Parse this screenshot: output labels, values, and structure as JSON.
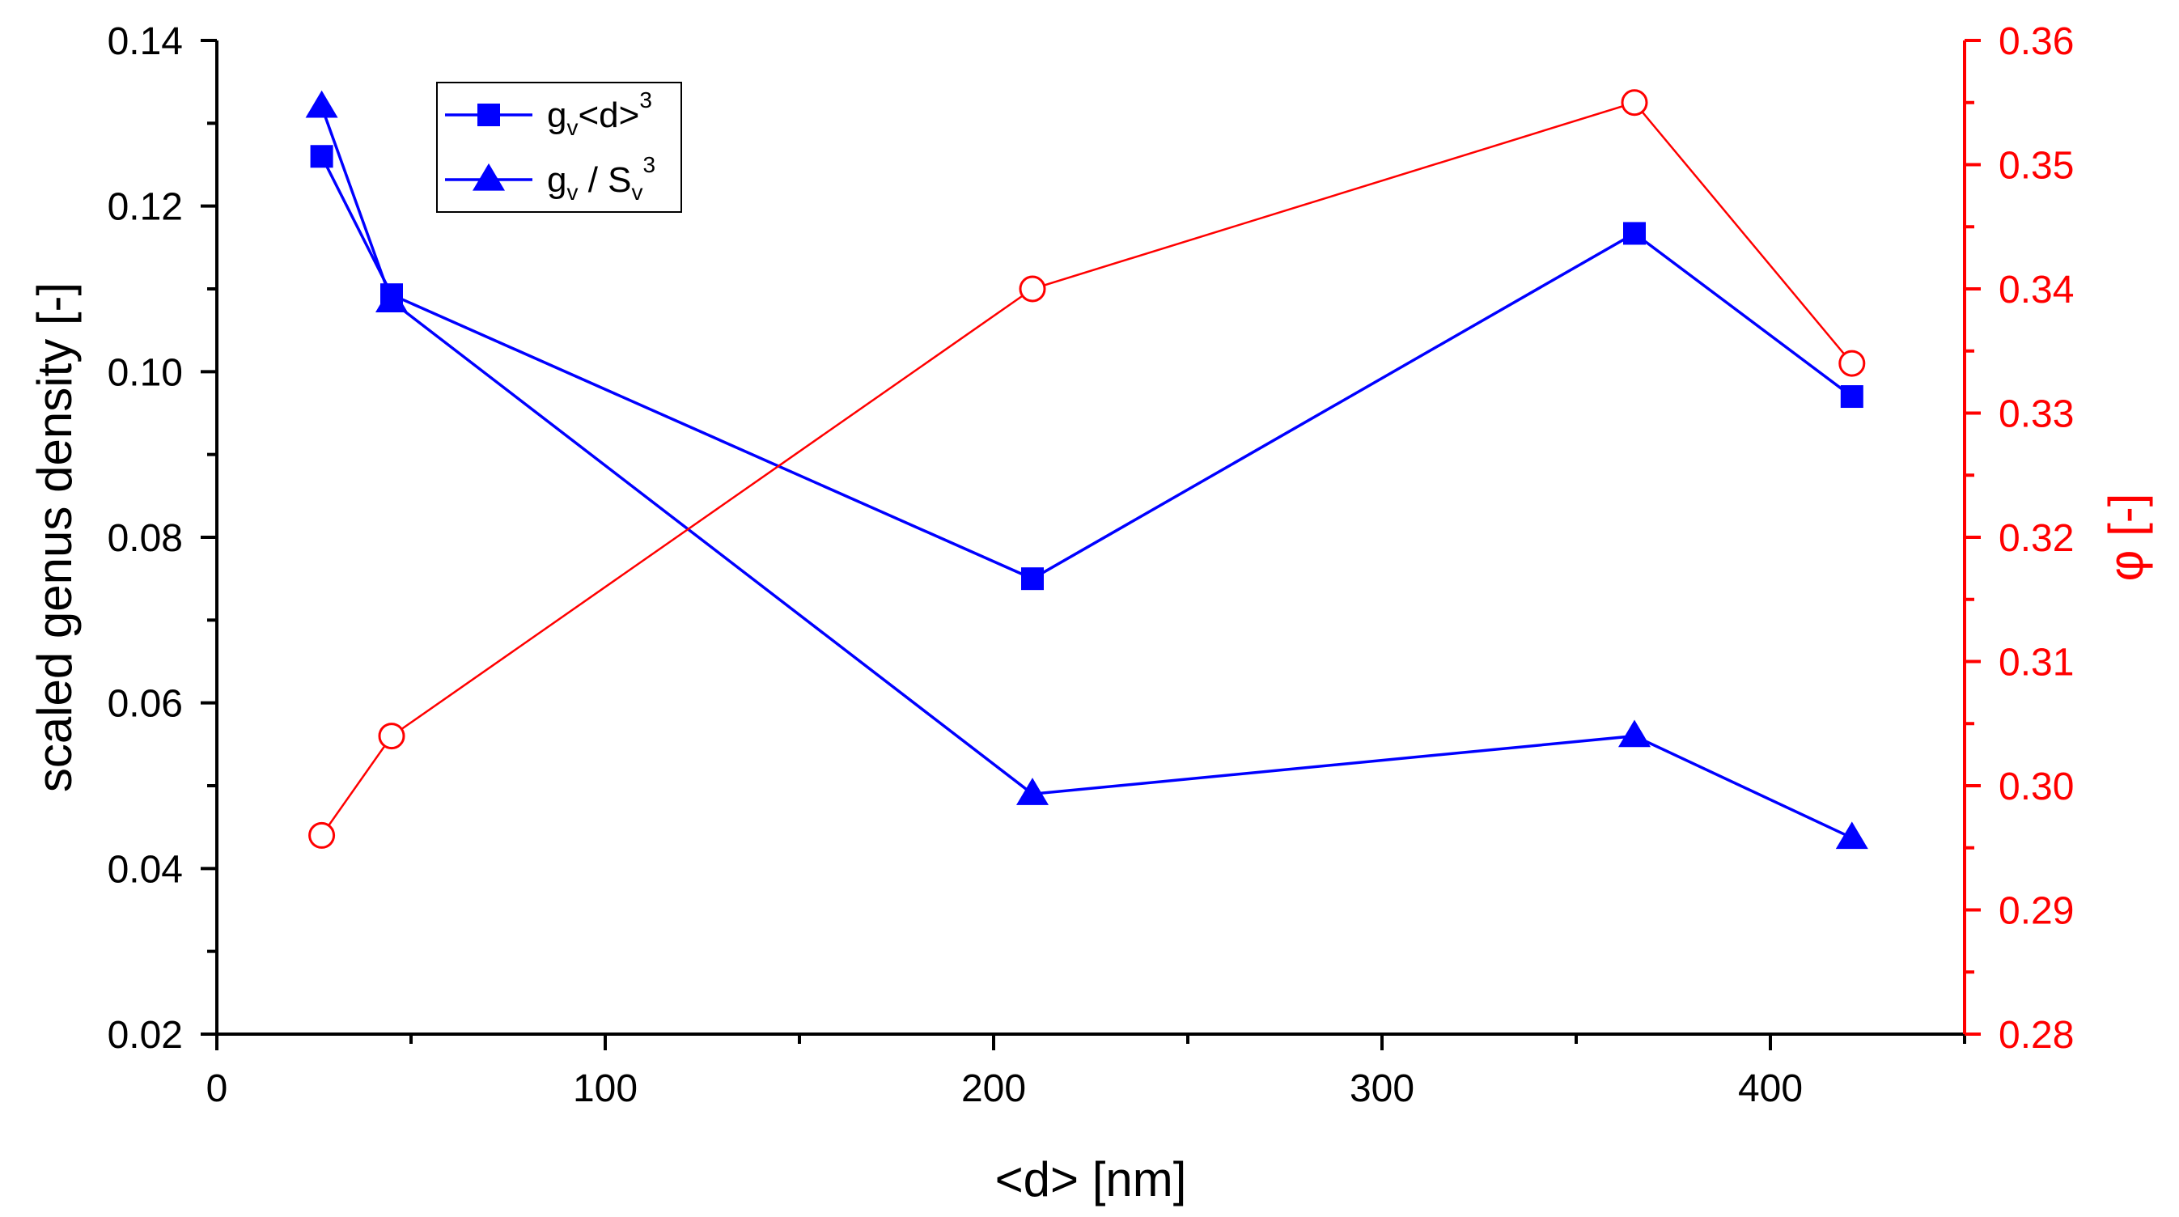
{
  "chart_data": {
    "type": "line",
    "title": "",
    "xlabel": "<d> [nm]",
    "ylabel_left": "scaled genus density [-]",
    "ylabel_right": "φ [-]",
    "xlim": [
      0,
      450
    ],
    "ylim_left": [
      0.02,
      0.14
    ],
    "ylim_right": [
      0.28,
      0.36
    ],
    "x_ticks": [
      "0",
      "100",
      "200",
      "300",
      "400"
    ],
    "y_left_ticks": [
      "0.02",
      "0.04",
      "0.06",
      "0.08",
      "0.10",
      "0.12",
      "0.14"
    ],
    "y_right_ticks": [
      "0.28",
      "0.29",
      "0.30",
      "0.31",
      "0.32",
      "0.33",
      "0.34",
      "0.35",
      "0.36"
    ],
    "grid": false,
    "legend_position": "top-left",
    "colors": {
      "left_axis": "#000000",
      "series_blue": "#0000ff",
      "right_axis": "#ff0000"
    },
    "series": [
      {
        "name": "g_v<d>^3",
        "legend_main": "g",
        "legend_sub": "v",
        "legend_rest": "<d>",
        "legend_sup": "3",
        "axis": "left",
        "marker": "square",
        "x": [
          27,
          45,
          210,
          365,
          421
        ],
        "values": [
          0.126,
          0.1093,
          0.075,
          0.1167,
          0.097
        ]
      },
      {
        "name": "g_v / S_v^3",
        "legend_main": "g",
        "legend_sub": "v",
        "legend_rest": " / S",
        "legend_sub2": "v",
        "legend_sup": "3",
        "axis": "left",
        "marker": "triangle",
        "x": [
          27,
          45,
          210,
          365,
          421
        ],
        "values": [
          0.132,
          0.1085,
          0.049,
          0.056,
          0.0437
        ]
      },
      {
        "name": "φ",
        "axis": "right",
        "marker": "open-circle",
        "x": [
          27,
          45,
          210,
          365,
          421
        ],
        "values": [
          0.296,
          0.304,
          0.34,
          0.355,
          0.334
        ]
      }
    ]
  }
}
